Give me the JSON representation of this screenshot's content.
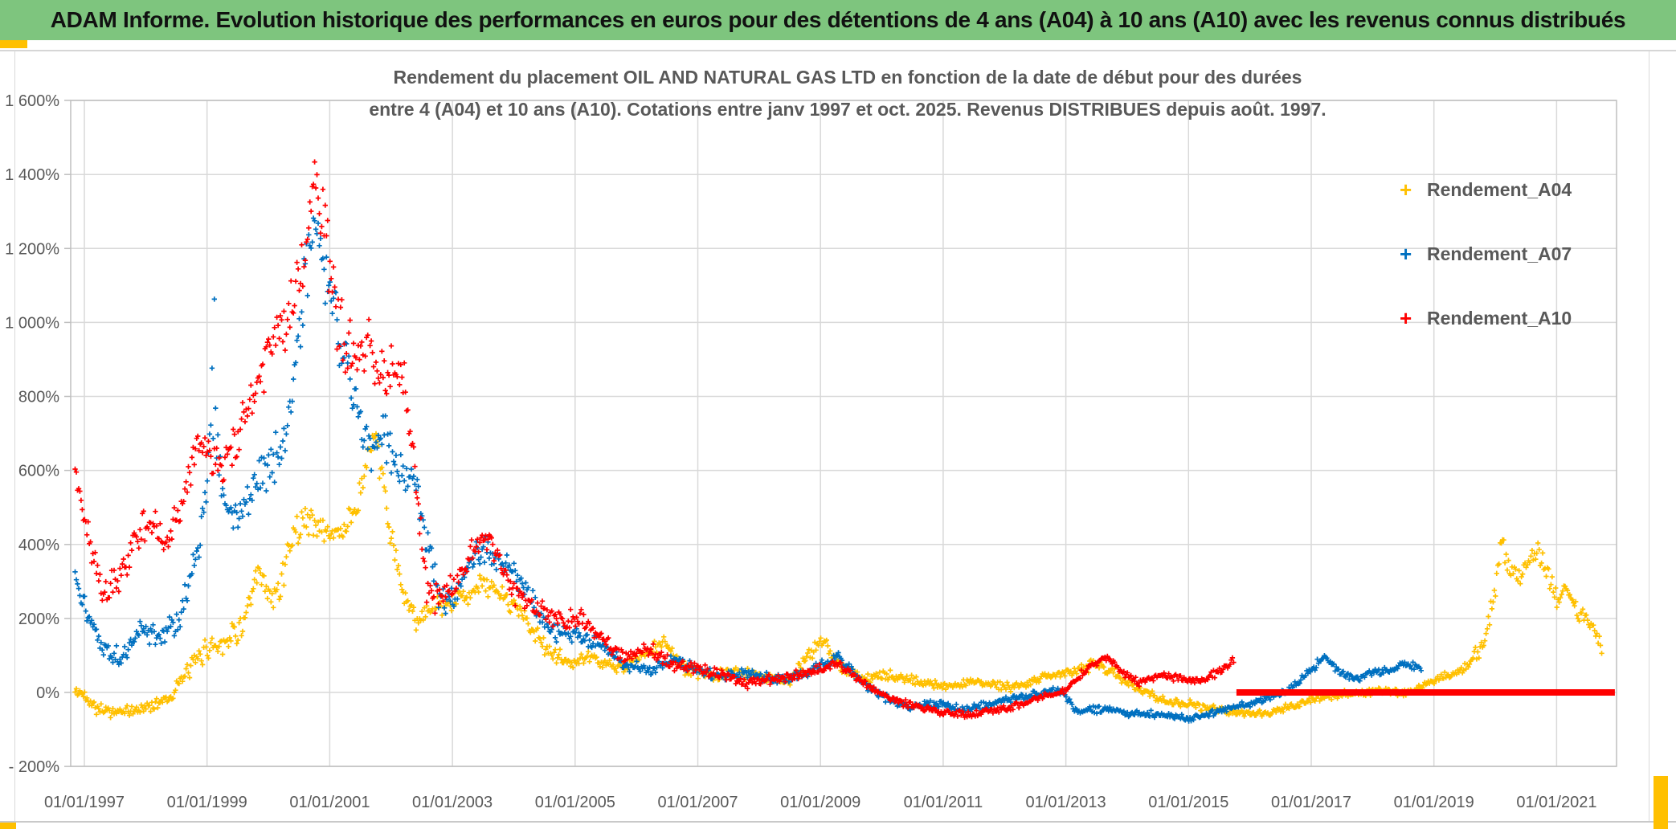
{
  "header": {
    "title": "ADAM Informe. Evolution historique des performances en euros pour des détentions de 4 ans (A04) à 10 ans (A10) avec les revenus connus distribués",
    "background": "#7EC57E",
    "accent_gold": "#FFC000"
  },
  "chart_data": {
    "type": "scatter",
    "title_line1": "Rendement du placement OIL AND NATURAL GAS LTD en fonction de la date de début pour des durées",
    "title_line2": "entre 4 (A04) et 10 ans (A10). Cotations entre janv 1997 et oct. 2025. Revenus DISTRIBUES depuis août. 1997.",
    "marker": "plus",
    "grid": true,
    "legend_position": "right",
    "x_axis": {
      "type": "date",
      "label_years": [
        1997,
        1999,
        2001,
        2003,
        2005,
        2007,
        2009,
        2011,
        2013,
        2015,
        2017,
        2019,
        2021
      ],
      "labels": [
        "01/01/1997",
        "01/01/1999",
        "01/01/2001",
        "01/01/2003",
        "01/01/2005",
        "01/01/2007",
        "01/01/2009",
        "01/01/2011",
        "01/01/2013",
        "01/01/2015",
        "01/01/2017",
        "01/01/2019",
        "01/01/2021"
      ],
      "domain": [
        1996.8,
        2021.98
      ]
    },
    "y_axis": {
      "unit": "%",
      "min": -200,
      "max": 1600,
      "step": 200,
      "labels": [
        "1 600%",
        "1 400%",
        "1 200%",
        "1 000%",
        "800%",
        "600%",
        "400%",
        "200%",
        "0%",
        "- 200%"
      ]
    },
    "series": [
      {
        "name": "Rendement_A04",
        "color": "#FFC000",
        "points": [
          [
            1996.85,
            0,
            20
          ],
          [
            1997.0,
            -5,
            22
          ],
          [
            1997.2,
            -40,
            22
          ],
          [
            1997.5,
            -55,
            18
          ],
          [
            1997.8,
            -50,
            18
          ],
          [
            1998.1,
            -35,
            20
          ],
          [
            1998.4,
            -10,
            25
          ],
          [
            1998.7,
            60,
            30
          ],
          [
            1999.0,
            120,
            35
          ],
          [
            1999.3,
            140,
            40
          ],
          [
            1999.6,
            185,
            45
          ],
          [
            1999.85,
            320,
            55
          ],
          [
            2000.05,
            240,
            50
          ],
          [
            2000.2,
            300,
            50
          ],
          [
            2000.4,
            430,
            55
          ],
          [
            2000.6,
            470,
            50
          ],
          [
            2000.8,
            450,
            45
          ],
          [
            2001.0,
            430,
            45
          ],
          [
            2001.2,
            435,
            40
          ],
          [
            2001.45,
            505,
            55
          ],
          [
            2001.7,
            690,
            45
          ],
          [
            2001.85,
            590,
            50
          ],
          [
            2002.0,
            420,
            55
          ],
          [
            2002.2,
            260,
            45
          ],
          [
            2002.4,
            200,
            38
          ],
          [
            2002.65,
            225,
            35
          ],
          [
            2002.9,
            230,
            38
          ],
          [
            2003.2,
            265,
            38
          ],
          [
            2003.5,
            295,
            35
          ],
          [
            2003.8,
            262,
            33
          ],
          [
            2004.1,
            225,
            33
          ],
          [
            2004.5,
            120,
            28
          ],
          [
            2004.9,
            78,
            24
          ],
          [
            2005.3,
            95,
            22
          ],
          [
            2005.7,
            62,
            20
          ],
          [
            2006.1,
            95,
            22
          ],
          [
            2006.45,
            138,
            20
          ],
          [
            2006.8,
            62,
            20
          ],
          [
            2007.2,
            42,
            18
          ],
          [
            2007.6,
            55,
            18
          ],
          [
            2008.0,
            46,
            17
          ],
          [
            2008.5,
            30,
            15
          ],
          [
            2008.85,
            110,
            25
          ],
          [
            2009.05,
            142,
            20
          ],
          [
            2009.35,
            70,
            20
          ],
          [
            2009.7,
            36,
            16
          ],
          [
            2010.1,
            46,
            16
          ],
          [
            2010.6,
            30,
            14
          ],
          [
            2011.1,
            16,
            14
          ],
          [
            2011.6,
            30,
            14
          ],
          [
            2012.1,
            12,
            14
          ],
          [
            2012.6,
            40,
            16
          ],
          [
            2013.1,
            55,
            18
          ],
          [
            2013.5,
            78,
            18
          ],
          [
            2014.0,
            30,
            16
          ],
          [
            2014.5,
            -18,
            14
          ],
          [
            2015.0,
            -32,
            13
          ],
          [
            2015.5,
            -46,
            13
          ],
          [
            2016.0,
            -60,
            13
          ],
          [
            2016.5,
            -46,
            13
          ],
          [
            2017.0,
            -22,
            13
          ],
          [
            2017.5,
            -6,
            13
          ],
          [
            2018.0,
            4,
            13
          ],
          [
            2018.5,
            0,
            13
          ],
          [
            2019.0,
            30,
            15
          ],
          [
            2019.5,
            66,
            18
          ],
          [
            2019.8,
            125,
            28
          ],
          [
            2020.0,
            280,
            45
          ],
          [
            2020.1,
            400,
            45
          ],
          [
            2020.25,
            330,
            40
          ],
          [
            2020.4,
            305,
            38
          ],
          [
            2020.55,
            362,
            32
          ],
          [
            2020.7,
            382,
            30
          ],
          [
            2020.85,
            330,
            38
          ],
          [
            2021.0,
            248,
            33
          ],
          [
            2021.15,
            288,
            26
          ],
          [
            2021.3,
            226,
            28
          ],
          [
            2021.5,
            196,
            24
          ],
          [
            2021.65,
            168,
            20
          ],
          [
            2021.75,
            95,
            28
          ]
        ]
      },
      {
        "name": "Rendement_A07",
        "color": "#0070C0",
        "points": [
          [
            1996.85,
            300,
            45
          ],
          [
            1997.05,
            215,
            40
          ],
          [
            1997.3,
            110,
            30
          ],
          [
            1997.6,
            95,
            28
          ],
          [
            1997.9,
            170,
            38
          ],
          [
            1998.2,
            158,
            38
          ],
          [
            1998.5,
            182,
            40
          ],
          [
            1998.8,
            345,
            55
          ],
          [
            1999.0,
            520,
            70
          ],
          [
            1999.1,
            880,
            300
          ],
          [
            1999.25,
            520,
            60
          ],
          [
            1999.5,
            480,
            60
          ],
          [
            1999.75,
            555,
            70
          ],
          [
            2000.0,
            620,
            80
          ],
          [
            2000.3,
            705,
            90
          ],
          [
            2000.55,
            1040,
            120
          ],
          [
            2000.75,
            1290,
            85
          ],
          [
            2000.95,
            1140,
            120
          ],
          [
            2001.15,
            950,
            100
          ],
          [
            2001.4,
            800,
            90
          ],
          [
            2001.65,
            655,
            80
          ],
          [
            2001.9,
            700,
            80
          ],
          [
            2002.1,
            605,
            70
          ],
          [
            2002.35,
            595,
            60
          ],
          [
            2002.55,
            440,
            60
          ],
          [
            2002.8,
            235,
            48
          ],
          [
            2003.05,
            265,
            40
          ],
          [
            2003.3,
            355,
            45
          ],
          [
            2003.6,
            388,
            40
          ],
          [
            2003.9,
            330,
            40
          ],
          [
            2004.2,
            278,
            38
          ],
          [
            2004.6,
            162,
            30
          ],
          [
            2005.0,
            158,
            28
          ],
          [
            2005.4,
            130,
            24
          ],
          [
            2005.8,
            80,
            22
          ],
          [
            2006.2,
            56,
            20
          ],
          [
            2006.6,
            88,
            20
          ],
          [
            2007.0,
            60,
            19
          ],
          [
            2007.4,
            40,
            18
          ],
          [
            2007.8,
            50,
            18
          ],
          [
            2008.2,
            36,
            16
          ],
          [
            2008.6,
            45,
            16
          ],
          [
            2009.0,
            70,
            18
          ],
          [
            2009.3,
            94,
            16
          ],
          [
            2009.6,
            40,
            16
          ],
          [
            2010.0,
            -8,
            14
          ],
          [
            2010.4,
            -40,
            13
          ],
          [
            2010.9,
            -30,
            13
          ],
          [
            2011.4,
            -46,
            13
          ],
          [
            2011.9,
            -26,
            13
          ],
          [
            2012.4,
            -10,
            13
          ],
          [
            2012.9,
            4,
            13
          ],
          [
            2013.2,
            -52,
            13
          ],
          [
            2013.6,
            -44,
            12
          ],
          [
            2014.0,
            -56,
            12
          ],
          [
            2014.5,
            -60,
            12
          ],
          [
            2015.0,
            -70,
            11
          ],
          [
            2015.4,
            -56,
            11
          ],
          [
            2015.8,
            -40,
            11
          ],
          [
            2016.2,
            -20,
            11
          ],
          [
            2016.6,
            4,
            11
          ],
          [
            2017.0,
            58,
            13
          ],
          [
            2017.2,
            98,
            13
          ],
          [
            2017.45,
            56,
            13
          ],
          [
            2017.7,
            36,
            13
          ],
          [
            2018.0,
            54,
            13
          ],
          [
            2018.3,
            60,
            13
          ],
          [
            2018.55,
            76,
            13
          ],
          [
            2018.8,
            62,
            15
          ]
        ]
      },
      {
        "name": "Rendement_A10",
        "color": "#FF0000",
        "points": [
          [
            1996.85,
            600,
            25
          ],
          [
            1997.05,
            430,
            60
          ],
          [
            1997.3,
            262,
            48
          ],
          [
            1997.6,
            320,
            55
          ],
          [
            1997.9,
            420,
            55
          ],
          [
            1998.1,
            468,
            55
          ],
          [
            1998.35,
            400,
            48
          ],
          [
            1998.6,
            520,
            55
          ],
          [
            1998.85,
            695,
            75
          ],
          [
            1999.05,
            640,
            65
          ],
          [
            1999.3,
            618,
            60
          ],
          [
            1999.55,
            700,
            75
          ],
          [
            1999.8,
            820,
            75
          ],
          [
            2000.05,
            945,
            85
          ],
          [
            2000.3,
            995,
            95
          ],
          [
            2000.55,
            1145,
            115
          ],
          [
            2000.75,
            1395,
            75
          ],
          [
            2000.95,
            1225,
            125
          ],
          [
            2001.15,
            1000,
            115
          ],
          [
            2001.4,
            900,
            95
          ],
          [
            2001.6,
            958,
            85
          ],
          [
            2001.8,
            845,
            75
          ],
          [
            2002.0,
            870,
            75
          ],
          [
            2002.2,
            858,
            65
          ],
          [
            2002.4,
            600,
            95
          ],
          [
            2002.55,
            305,
            60
          ],
          [
            2002.75,
            252,
            48
          ],
          [
            2003.0,
            282,
            42
          ],
          [
            2003.3,
            378,
            42
          ],
          [
            2003.55,
            418,
            38
          ],
          [
            2003.8,
            332,
            42
          ],
          [
            2004.1,
            252,
            38
          ],
          [
            2004.45,
            230,
            38
          ],
          [
            2004.8,
            192,
            33
          ],
          [
            2005.1,
            198,
            33
          ],
          [
            2005.45,
            140,
            28
          ],
          [
            2005.8,
            92,
            24
          ],
          [
            2006.2,
            120,
            24
          ],
          [
            2006.6,
            76,
            21
          ],
          [
            2007.0,
            66,
            19
          ],
          [
            2007.4,
            46,
            18
          ],
          [
            2007.8,
            26,
            17
          ],
          [
            2008.2,
            36,
            16
          ],
          [
            2008.6,
            46,
            16
          ],
          [
            2009.0,
            64,
            18
          ],
          [
            2009.3,
            80,
            16
          ],
          [
            2009.6,
            36,
            15
          ],
          [
            2010.0,
            -6,
            14
          ],
          [
            2010.5,
            -36,
            13
          ],
          [
            2011.0,
            -55,
            11
          ],
          [
            2011.5,
            -60,
            11
          ],
          [
            2012.0,
            -42,
            11
          ],
          [
            2012.5,
            -20,
            11
          ],
          [
            2013.0,
            6,
            13
          ],
          [
            2013.4,
            74,
            15
          ],
          [
            2013.65,
            98,
            13
          ],
          [
            2013.9,
            60,
            15
          ],
          [
            2014.2,
            26,
            13
          ],
          [
            2014.55,
            50,
            13
          ],
          [
            2014.9,
            36,
            13
          ],
          [
            2015.2,
            32,
            13
          ],
          [
            2015.5,
            56,
            13
          ],
          [
            2015.75,
            85,
            14
          ]
        ],
        "zero_segment": {
          "from": 2015.78,
          "to": 2021.95,
          "value": 0
        }
      }
    ],
    "colors": {
      "gridline": "#d9d9d9",
      "axis_text": "#595959",
      "plot_border": "#bfbfbf"
    }
  }
}
